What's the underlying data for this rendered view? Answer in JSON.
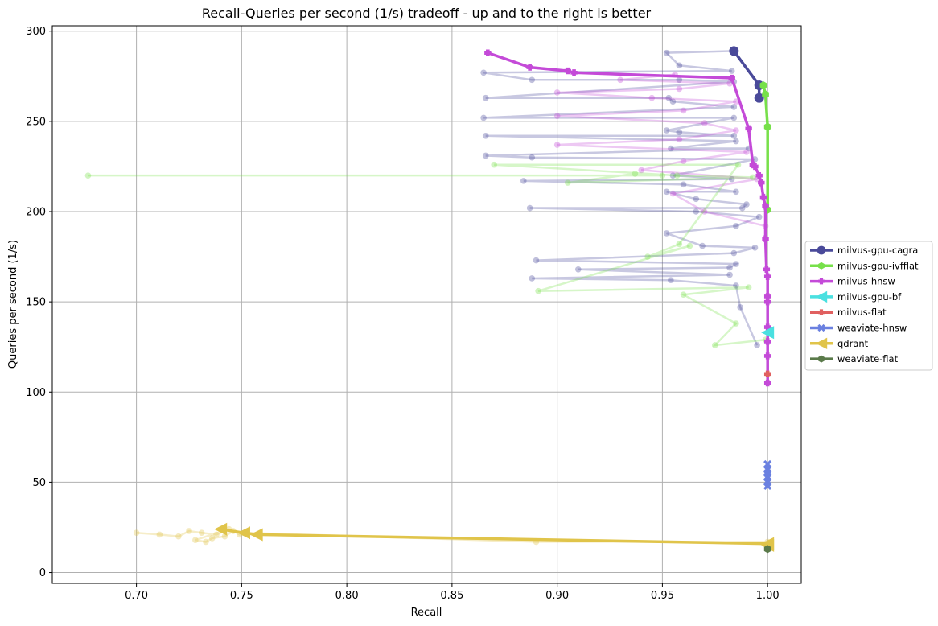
{
  "chart_data": {
    "type": "line",
    "title": "Recall-Queries per second (1/s) tradeoff - up and to the right is better",
    "xlabel": "Recall",
    "ylabel": "Queries per second (1/s)",
    "xlim": [
      0.66,
      1.016
    ],
    "ylim": [
      -6,
      303
    ],
    "xticks": [
      "0.70",
      "0.75",
      "0.80",
      "0.85",
      "0.90",
      "0.95",
      "1.00"
    ],
    "xtick_values": [
      0.7,
      0.75,
      0.8,
      0.85,
      0.9,
      0.95,
      1.0
    ],
    "yticks": [
      "0",
      "50",
      "100",
      "150",
      "200",
      "250",
      "300"
    ],
    "ytick_values": [
      0,
      50,
      100,
      150,
      200,
      250,
      300
    ],
    "grid": true,
    "legend_position": "right",
    "series": [
      {
        "name": "milvus-gpu-cagra",
        "color": "#4a4a9a",
        "marker": "circle",
        "x": [
          0.984,
          0.996,
          0.996
        ],
        "y": [
          289,
          270,
          263
        ]
      },
      {
        "name": "milvus-gpu-ivfflat",
        "color": "#77e04a",
        "marker": "hexagon",
        "x": [
          0.998,
          0.999,
          1.0,
          1.0
        ],
        "y": [
          270,
          265,
          247,
          201
        ]
      },
      {
        "name": "milvus-hnsw",
        "color": "#c44ad8",
        "marker": "plus",
        "x": [
          0.867,
          0.887,
          0.905,
          0.908,
          0.983,
          0.991,
          0.993,
          0.994,
          0.996,
          0.997,
          0.998,
          0.999,
          0.999,
          0.9995,
          1.0,
          1.0,
          1.0,
          1.0,
          1.0,
          1.0,
          1.0
        ],
        "y": [
          288,
          280,
          278,
          277,
          274,
          246,
          226,
          225,
          220,
          216,
          208,
          203,
          185,
          168,
          164,
          153,
          150,
          136,
          128,
          120,
          105
        ]
      },
      {
        "name": "milvus-gpu-bf",
        "color": "#4ae0e0",
        "marker": "triangle-left",
        "x": [
          1.0
        ],
        "y": [
          133
        ]
      },
      {
        "name": "milvus-flat",
        "color": "#e06060",
        "marker": "plus",
        "x": [
          1.0
        ],
        "y": [
          110
        ]
      },
      {
        "name": "weaviate-hnsw",
        "color": "#6a80e0",
        "marker": "x",
        "x": [
          1.0,
          1.0,
          1.0,
          1.0,
          1.0,
          1.0
        ],
        "y": [
          60,
          57,
          55,
          53,
          50,
          48
        ]
      },
      {
        "name": "qdrant",
        "color": "#e0c44a",
        "marker": "triangle-left",
        "x": [
          0.74,
          0.751,
          0.757,
          1.0,
          1.0
        ],
        "y": [
          24,
          22,
          21,
          16,
          15
        ]
      },
      {
        "name": "weaviate-flat",
        "color": "#5a7a4a",
        "marker": "hexagon",
        "x": [
          1.0
        ],
        "y": [
          13
        ]
      }
    ],
    "background_traces": [
      {
        "color": "#4a4a9a",
        "x": [
          0.984,
          0.952,
          0.958,
          0.983,
          0.865,
          0.888,
          0.958,
          0.984,
          0.866,
          0.953,
          0.955,
          0.984,
          0.865,
          0.984,
          0.952,
          0.958,
          0.984,
          0.866,
          0.985,
          0.954,
          0.991,
          0.866,
          0.888,
          0.994,
          0.955,
          0.983,
          0.884,
          0.96,
          0.985,
          0.952,
          0.966,
          0.99,
          0.988,
          0.887,
          0.966,
          0.996,
          0.985,
          0.952,
          0.969,
          0.994,
          0.984,
          0.89,
          0.985,
          0.982,
          0.91,
          0.982,
          0.888,
          0.954,
          0.985,
          0.987,
          0.995
        ],
        "y": [
          289,
          288,
          281,
          278,
          277,
          273,
          273,
          272,
          263,
          263,
          261,
          258,
          252,
          252,
          245,
          244,
          242,
          242,
          239,
          235,
          235,
          231,
          230,
          229,
          220,
          218,
          217,
          215,
          211,
          211,
          207,
          204,
          202,
          202,
          200,
          197,
          192,
          188,
          181,
          180,
          177,
          173,
          171,
          169,
          168,
          165,
          163,
          162,
          159,
          147,
          126
        ]
      },
      {
        "color": "#c44ad8",
        "x": [
          0.956,
          0.93,
          0.982,
          0.958,
          0.9,
          0.945,
          0.985,
          0.96,
          0.9,
          0.97,
          0.985,
          0.958,
          0.9,
          0.99,
          0.96,
          0.94,
          0.995,
          0.955,
          0.97,
          0.999
        ],
        "y": [
          276,
          273,
          271,
          268,
          266,
          263,
          261,
          256,
          253,
          249,
          245,
          240,
          237,
          233,
          228,
          223,
          218,
          210,
          200,
          192
        ]
      },
      {
        "color": "#77e04a",
        "x": [
          0.677,
          0.95,
          0.937,
          0.905,
          0.993,
          0.957,
          0.87,
          0.986,
          0.958,
          0.943,
          0.963,
          0.891,
          0.991,
          0.96,
          0.985,
          0.975,
          0.999
        ],
        "y": [
          220,
          220,
          221,
          216,
          219,
          220,
          226,
          226,
          182,
          175,
          181,
          156,
          158,
          154,
          138,
          126,
          129
        ]
      },
      {
        "color": "#e0c44a",
        "x": [
          0.7,
          0.711,
          0.72,
          0.725,
          0.731,
          0.738,
          0.744,
          0.728,
          0.733,
          0.736,
          0.742,
          0.746,
          0.749,
          0.752,
          0.89,
          1.0
        ],
        "y": [
          22,
          21,
          20,
          23,
          22,
          21,
          24,
          18,
          17,
          19,
          20,
          23,
          21,
          22,
          17,
          17
        ]
      }
    ]
  }
}
